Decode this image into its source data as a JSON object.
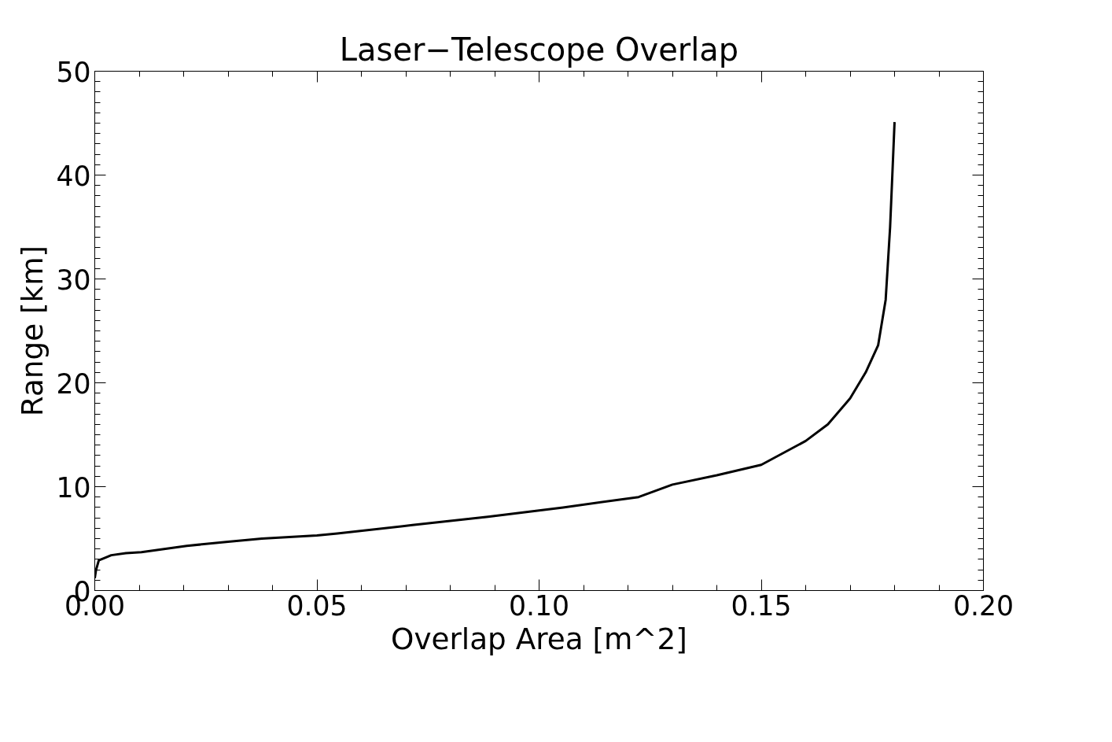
{
  "chart_data": {
    "type": "line",
    "title": "Laser−Telescope Overlap",
    "xlabel": "Overlap Area [m^2]",
    "ylabel": "Range [km]",
    "x": [
      0,
      0.0003,
      0.0009,
      0.002,
      0.0037,
      0.007,
      0.0105,
      0.0207,
      0.03,
      0.0376,
      0.05,
      0.0546,
      0.0715,
      0.0885,
      0.1,
      0.1054,
      0.1224,
      0.13,
      0.14,
      0.15,
      0.16,
      0.165,
      0.17,
      0.1735,
      0.1763,
      0.178,
      0.179,
      0.1795,
      0.18
    ],
    "series": [
      {
        "color": "#000000",
        "values": [
          1.2,
          2.0,
          2.9,
          3.1,
          3.4,
          3.6,
          3.7,
          4.3,
          4.7,
          5.0,
          5.3,
          5.5,
          6.3,
          7.1,
          7.7,
          8.0,
          9.0,
          10.2,
          11.1,
          12.1,
          14.4,
          16.0,
          18.5,
          21.0,
          23.6,
          28.0,
          35.0,
          40.0,
          45.1
        ]
      }
    ],
    "xlim": [
      0,
      0.2
    ],
    "ylim": [
      0,
      50
    ],
    "xticks": [
      {
        "value": 0,
        "label": "0.00"
      },
      {
        "value": 0.05,
        "label": "0.05"
      },
      {
        "value": 0.1,
        "label": "0.10"
      },
      {
        "value": 0.15,
        "label": "0.15"
      },
      {
        "value": 0.2,
        "label": "0.20"
      }
    ],
    "yticks": [
      0,
      10,
      20,
      30,
      40,
      50
    ],
    "grid": false,
    "marker": "none",
    "line_style": "solid"
  }
}
